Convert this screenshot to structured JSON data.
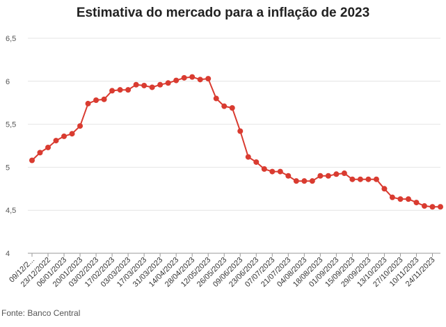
{
  "chart_data": {
    "type": "line",
    "title": "Estimativa do mercado para a inflação de 2023",
    "source": "Fonte: Banco Central",
    "xlabel": "",
    "ylabel": "",
    "ylim": [
      4,
      6.5
    ],
    "yticks": [
      "4",
      "4,5",
      "5",
      "5,5",
      "6",
      "6,5"
    ],
    "grid": true,
    "color": "#d93b30",
    "x": [
      "09/12/2022",
      "16/12/2022",
      "23/12/2022",
      "30/12/2022",
      "06/01/2023",
      "13/01/2023",
      "20/01/2023",
      "27/01/2023",
      "03/02/2023",
      "10/02/2023",
      "17/02/2023",
      "24/02/2023",
      "03/03/2023",
      "10/03/2023",
      "17/03/2023",
      "24/03/2023",
      "31/03/2023",
      "06/04/2023",
      "14/04/2023",
      "21/04/2023",
      "28/04/2023",
      "05/05/2023",
      "12/05/2023",
      "19/05/2023",
      "26/05/2023",
      "02/06/2023",
      "09/06/2023",
      "16/06/2023",
      "23/06/2023",
      "30/06/2023",
      "07/07/2023",
      "14/07/2023",
      "21/07/2023",
      "28/07/2023",
      "04/08/2023",
      "11/08/2023",
      "18/08/2023",
      "25/08/2023",
      "01/09/2023",
      "08/09/2023",
      "15/09/2023",
      "22/09/2023",
      "29/09/2023",
      "06/10/2023",
      "13/10/2023",
      "20/10/2023",
      "27/10/2023",
      "03/11/2023",
      "10/11/2023",
      "17/11/2023",
      "24/11/2023",
      "01/12/2023"
    ],
    "x_tick_labels": [
      "09/12/2...",
      "23/12/2022",
      "06/01/2023",
      "20/01/2023",
      "03/02/2023",
      "17/02/2023",
      "03/03/2023",
      "17/03/2023",
      "31/03/2023",
      "14/04/2023",
      "28/04/2023",
      "12/05/2023",
      "26/05/2023",
      "09/06/2023",
      "23/06/2023",
      "07/07/2023",
      "21/07/2023",
      "04/08/2023",
      "18/08/2023",
      "01/09/2023",
      "15/09/2023",
      "29/09/2023",
      "13/10/2023",
      "27/10/2023",
      "10/11/2023",
      "24/11/2023"
    ],
    "values": [
      5.08,
      5.17,
      5.23,
      5.31,
      5.36,
      5.39,
      5.48,
      5.74,
      5.78,
      5.79,
      5.89,
      5.9,
      5.9,
      5.96,
      5.95,
      5.93,
      5.96,
      5.98,
      6.01,
      6.04,
      6.05,
      6.02,
      6.03,
      5.8,
      5.71,
      5.69,
      5.42,
      5.12,
      5.06,
      4.98,
      4.95,
      4.95,
      4.9,
      4.84,
      4.84,
      4.84,
      4.9,
      4.9,
      4.92,
      4.93,
      4.86,
      4.86,
      4.86,
      4.86,
      4.75,
      4.65,
      4.63,
      4.63,
      4.59,
      4.55,
      4.54,
      4.54
    ]
  }
}
